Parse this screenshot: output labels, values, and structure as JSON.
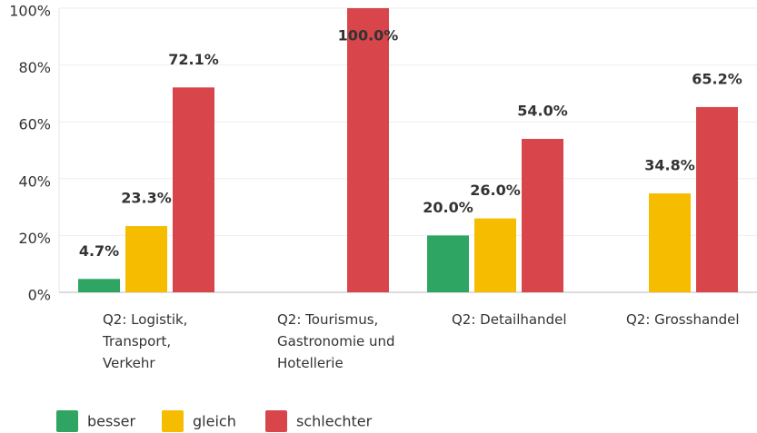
{
  "chart_data": {
    "type": "bar",
    "categories": [
      "Q2: Logistik, Transport, Verkehr",
      "Q2: Tourismus, Gastronomie und Hotellerie",
      "Q2: Detailhandel",
      "Q2: Grosshandel"
    ],
    "series": [
      {
        "name": "besser",
        "color": "#2ea563",
        "values": [
          4.7,
          null,
          20.0,
          null
        ],
        "value_labels": [
          "4.7%",
          null,
          "20.0%",
          null
        ]
      },
      {
        "name": "gleich",
        "color": "#f6bc00",
        "values": [
          23.3,
          null,
          26.0,
          34.8
        ],
        "value_labels": [
          "23.3%",
          null,
          "26.0%",
          "34.8%"
        ]
      },
      {
        "name": "schlechter",
        "color": "#d8464b",
        "values": [
          72.1,
          100.0,
          54.0,
          65.2
        ],
        "value_labels": [
          "72.1%",
          "100.0%",
          "54.0%",
          "65.2%"
        ]
      }
    ],
    "ylim": [
      0,
      100
    ],
    "yticks": [
      {
        "value": 0,
        "label": "0%"
      },
      {
        "value": 20,
        "label": "20%"
      },
      {
        "value": 40,
        "label": "40%"
      },
      {
        "value": 60,
        "label": "60%"
      },
      {
        "value": 80,
        "label": "80%"
      },
      {
        "value": 100,
        "label": "100%"
      }
    ],
    "grid": true,
    "legend": "bottom"
  }
}
